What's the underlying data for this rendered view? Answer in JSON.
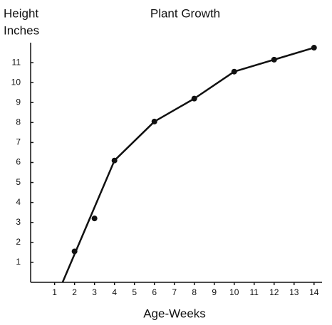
{
  "chart_data": {
    "type": "line",
    "title": "Plant Growth",
    "ylabel": [
      "Height",
      "Inches"
    ],
    "xlabel": "Age-Weeks",
    "xlim": [
      -0.2,
      14.4
    ],
    "ylim": [
      0,
      12
    ],
    "xticks": [
      1,
      2,
      3,
      4,
      5,
      6,
      7,
      8,
      9,
      10,
      11,
      12,
      13,
      14
    ],
    "yticks": [
      1,
      2,
      3,
      4,
      5,
      6,
      7,
      8,
      9,
      10,
      11
    ],
    "grid": false,
    "series": [
      {
        "style": "line",
        "color": "#111111",
        "x": [
          1.4,
          4,
          6,
          8,
          10,
          12,
          14
        ],
        "values": [
          0,
          6.1,
          8.05,
          9.2,
          10.55,
          11.15,
          11.75
        ]
      },
      {
        "style": "dots",
        "color": "#111111",
        "x": [
          2,
          3,
          4,
          6,
          8,
          10,
          12,
          14
        ],
        "values": [
          1.55,
          3.2,
          6.1,
          8.05,
          9.2,
          10.55,
          11.15,
          11.75
        ]
      }
    ]
  }
}
